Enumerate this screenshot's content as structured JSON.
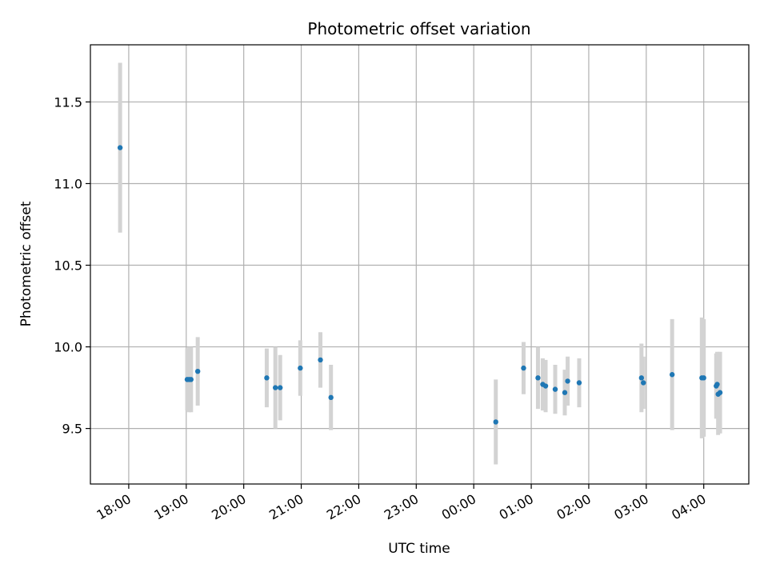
{
  "chart_data": {
    "type": "scatter",
    "title": "Photometric offset variation",
    "xlabel": "UTC time",
    "ylabel": "Photometric offset",
    "x_axis_kind": "time-of-day, crossing midnight",
    "xlim": [
      "17:20",
      "04:47"
    ],
    "ylim": [
      9.16,
      11.85
    ],
    "x_ticks": [
      "18:00",
      "19:00",
      "20:00",
      "21:00",
      "22:00",
      "23:00",
      "00:00",
      "01:00",
      "02:00",
      "03:00",
      "04:00"
    ],
    "y_ticks": [
      9.5,
      10.0,
      10.5,
      11.0,
      11.5
    ],
    "grid": true,
    "legend": "none",
    "marker_color": "#1f77b4",
    "errorbar_color": "#d3d3d3",
    "points": [
      {
        "x": "17:51",
        "y": 11.22,
        "err": 0.52
      },
      {
        "x": "19:01",
        "y": 9.8,
        "err": 0.19
      },
      {
        "x": "19:03",
        "y": 9.8,
        "err": 0.2
      },
      {
        "x": "19:05",
        "y": 9.8,
        "err": 0.2
      },
      {
        "x": "19:12",
        "y": 9.85,
        "err": 0.21
      },
      {
        "x": "20:24",
        "y": 9.81,
        "err": 0.18
      },
      {
        "x": "20:33",
        "y": 9.75,
        "err": 0.25
      },
      {
        "x": "20:38",
        "y": 9.75,
        "err": 0.2
      },
      {
        "x": "20:59",
        "y": 9.87,
        "err": 0.17
      },
      {
        "x": "21:20",
        "y": 9.92,
        "err": 0.17
      },
      {
        "x": "21:31",
        "y": 9.69,
        "err": 0.2
      },
      {
        "x": "00:23",
        "y": 9.54,
        "err": 0.26
      },
      {
        "x": "00:52",
        "y": 9.87,
        "err": 0.16
      },
      {
        "x": "01:07",
        "y": 9.81,
        "err": 0.19
      },
      {
        "x": "01:12",
        "y": 9.77,
        "err": 0.16
      },
      {
        "x": "01:15",
        "y": 9.76,
        "err": 0.16
      },
      {
        "x": "01:25",
        "y": 9.74,
        "err": 0.15
      },
      {
        "x": "01:35",
        "y": 9.72,
        "err": 0.14
      },
      {
        "x": "01:38",
        "y": 9.79,
        "err": 0.15
      },
      {
        "x": "01:50",
        "y": 9.78,
        "err": 0.15
      },
      {
        "x": "02:55",
        "y": 9.81,
        "err": 0.21
      },
      {
        "x": "02:57",
        "y": 9.78,
        "err": 0.16
      },
      {
        "x": "03:27",
        "y": 9.83,
        "err": 0.34
      },
      {
        "x": "03:58",
        "y": 9.81,
        "err": 0.37
      },
      {
        "x": "04:00",
        "y": 9.81,
        "err": 0.36
      },
      {
        "x": "04:13",
        "y": 9.76,
        "err": 0.2
      },
      {
        "x": "04:14",
        "y": 9.77,
        "err": 0.2
      },
      {
        "x": "04:15",
        "y": 9.71,
        "err": 0.25
      },
      {
        "x": "04:17",
        "y": 9.72,
        "err": 0.25
      }
    ]
  }
}
